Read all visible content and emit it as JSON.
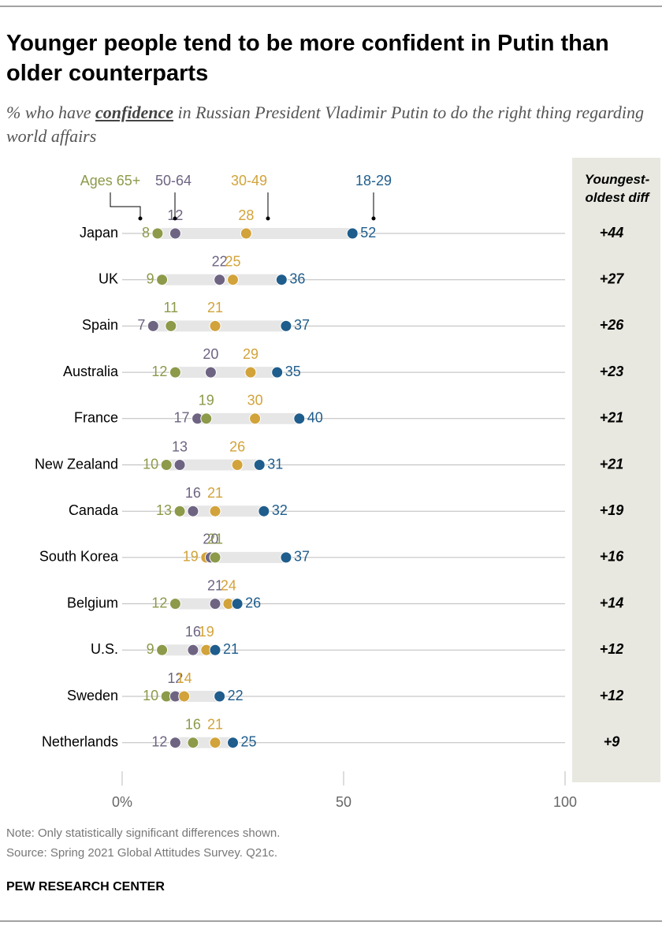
{
  "chart_data": {
    "type": "dot",
    "title": "Younger people tend to be more confident in Putin than older counterparts",
    "subtitle_parts": [
      "% who have ",
      "confidence",
      " in Russian President Vladimir Putin to do the right thing regarding world affairs"
    ],
    "categories": [
      "Japan",
      "UK",
      "Spain",
      "Australia",
      "France",
      "New Zealand",
      "Canada",
      "South Korea",
      "Belgium",
      "U.S.",
      "Sweden",
      "Netherlands"
    ],
    "series": [
      {
        "name": "Ages 65+",
        "color": "#8c9a4a",
        "values": [
          8,
          9,
          11,
          12,
          19,
          10,
          13,
          21,
          12,
          9,
          10,
          16
        ]
      },
      {
        "name": "50-64",
        "color": "#6e6482",
        "values": [
          12,
          22,
          7,
          20,
          17,
          13,
          16,
          20,
          21,
          16,
          12,
          12
        ]
      },
      {
        "name": "30-49",
        "color": "#d2a33a",
        "values": [
          28,
          25,
          21,
          29,
          30,
          26,
          21,
          19,
          24,
          19,
          14,
          21
        ]
      },
      {
        "name": "18-29",
        "color": "#1f5d8c",
        "values": [
          52,
          36,
          37,
          35,
          40,
          31,
          32,
          37,
          26,
          21,
          22,
          25
        ]
      }
    ],
    "diff": {
      "title": "Youngest-oldest diff",
      "values": [
        44,
        27,
        26,
        23,
        21,
        21,
        19,
        16,
        14,
        12,
        12,
        9
      ],
      "value_labels": [
        "+44",
        "+27",
        "+26",
        "+23",
        "+21",
        "+21",
        "+19",
        "+16",
        "+14",
        "+12",
        "+12",
        "+9"
      ]
    },
    "xlim": [
      0,
      100
    ],
    "xticks": [
      {
        "value": 0,
        "label": "0%"
      },
      50,
      100
    ],
    "note": "Note: Only statistically significant differences shown.",
    "source": "Source: Spring 2021 Global Attitudes Survey. Q21c.",
    "brand": "PEW RESEARCH CENTER"
  }
}
